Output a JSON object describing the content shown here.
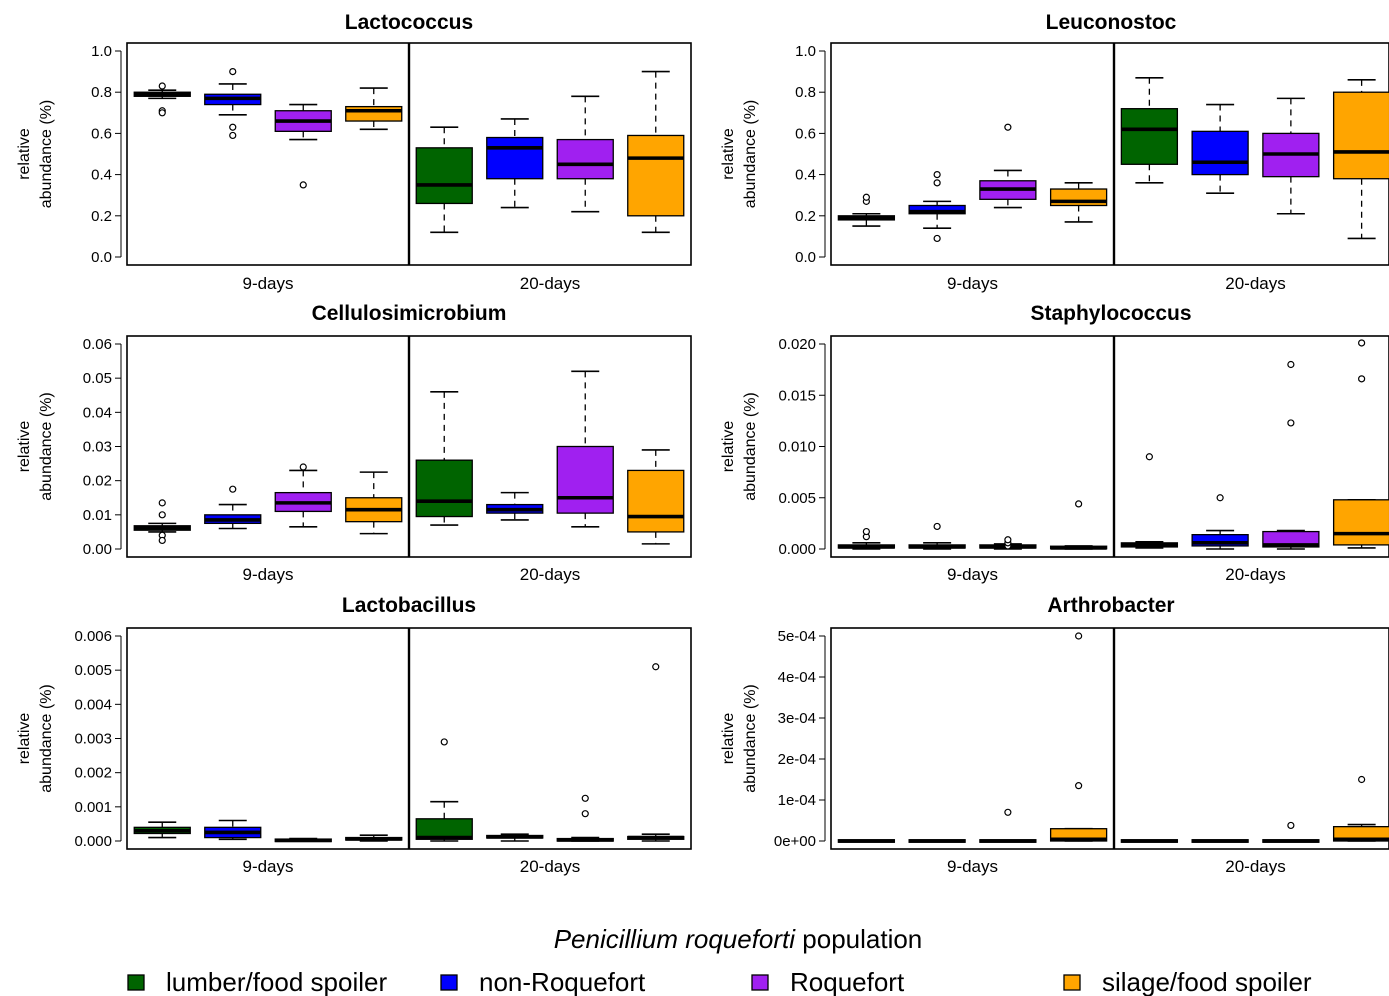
{
  "legend": {
    "title_italic": "Penicillium roqueforti",
    "title_rest": " population",
    "items": [
      {
        "label": "lumber/food spoiler",
        "color": "#006400"
      },
      {
        "label": "non-Roquefort",
        "color": "#0000ff"
      },
      {
        "label": "Roquefort",
        "color": "#a020f0"
      },
      {
        "label": "silage/food spoiler",
        "color": "#ffa500"
      }
    ]
  },
  "chart_data": [
    {
      "type": "box",
      "title": "Lactococcus",
      "ylabel_lines": [
        "relative",
        "abundance (%)"
      ],
      "categories": [
        "9-days",
        "20-days"
      ],
      "yticks": [
        "0.0",
        "0.2",
        "0.4",
        "0.6",
        "0.8",
        "1.0"
      ],
      "ylim": [
        0.0,
        1.0
      ],
      "groups": [
        [
          {
            "lo": 0.77,
            "q1": 0.78,
            "med": 0.79,
            "q3": 0.8,
            "hi": 0.81,
            "out": [
              0.83,
              0.71,
              0.7
            ]
          },
          {
            "lo": 0.69,
            "q1": 0.74,
            "med": 0.77,
            "q3": 0.79,
            "hi": 0.84,
            "out": [
              0.9,
              0.63,
              0.59
            ]
          },
          {
            "lo": 0.57,
            "q1": 0.61,
            "med": 0.66,
            "q3": 0.71,
            "hi": 0.74,
            "out": [
              0.35
            ]
          },
          {
            "lo": 0.62,
            "q1": 0.66,
            "med": 0.71,
            "q3": 0.73,
            "hi": 0.82,
            "out": []
          }
        ],
        [
          {
            "lo": 0.12,
            "q1": 0.26,
            "med": 0.35,
            "q3": 0.53,
            "hi": 0.63,
            "out": []
          },
          {
            "lo": 0.24,
            "q1": 0.38,
            "med": 0.53,
            "q3": 0.58,
            "hi": 0.67,
            "out": []
          },
          {
            "lo": 0.22,
            "q1": 0.38,
            "med": 0.45,
            "q3": 0.57,
            "hi": 0.78,
            "out": []
          },
          {
            "lo": 0.12,
            "q1": 0.2,
            "med": 0.48,
            "q3": 0.59,
            "hi": 0.9,
            "out": []
          }
        ]
      ]
    },
    {
      "type": "box",
      "title": "Leuconostoc",
      "ylabel_lines": [
        "relative",
        "abundance (%)"
      ],
      "categories": [
        "9-days",
        "20-days"
      ],
      "yticks": [
        "0.0",
        "0.2",
        "0.4",
        "0.6",
        "0.8",
        "1.0"
      ],
      "ylim": [
        0.0,
        1.0
      ],
      "groups": [
        [
          {
            "lo": 0.15,
            "q1": 0.18,
            "med": 0.19,
            "q3": 0.2,
            "hi": 0.21,
            "out": [
              0.27,
              0.29
            ]
          },
          {
            "lo": 0.14,
            "q1": 0.21,
            "med": 0.22,
            "q3": 0.25,
            "hi": 0.27,
            "out": [
              0.36,
              0.4,
              0.09
            ]
          },
          {
            "lo": 0.24,
            "q1": 0.28,
            "med": 0.33,
            "q3": 0.37,
            "hi": 0.42,
            "out": [
              0.63
            ]
          },
          {
            "lo": 0.17,
            "q1": 0.25,
            "med": 0.27,
            "q3": 0.33,
            "hi": 0.36,
            "out": []
          }
        ],
        [
          {
            "lo": 0.36,
            "q1": 0.45,
            "med": 0.62,
            "q3": 0.72,
            "hi": 0.87,
            "out": []
          },
          {
            "lo": 0.31,
            "q1": 0.4,
            "med": 0.46,
            "q3": 0.61,
            "hi": 0.74,
            "out": []
          },
          {
            "lo": 0.21,
            "q1": 0.39,
            "med": 0.5,
            "q3": 0.6,
            "hi": 0.77,
            "out": []
          },
          {
            "lo": 0.09,
            "q1": 0.38,
            "med": 0.51,
            "q3": 0.8,
            "hi": 0.86,
            "out": []
          }
        ]
      ]
    },
    {
      "type": "box",
      "title": "Cellulosimicrobium",
      "ylabel_lines": [
        "relative",
        "abundance (%)"
      ],
      "categories": [
        "9-days",
        "20-days"
      ],
      "yticks": [
        "0.00",
        "0.01",
        "0.02",
        "0.03",
        "0.04",
        "0.05",
        "0.06"
      ],
      "ylim": [
        0.0,
        0.06
      ],
      "groups": [
        [
          {
            "lo": 0.005,
            "q1": 0.0055,
            "med": 0.0062,
            "q3": 0.0068,
            "hi": 0.0075,
            "out": [
              0.0135,
              0.01,
              0.004,
              0.0025
            ]
          },
          {
            "lo": 0.006,
            "q1": 0.0075,
            "med": 0.0085,
            "q3": 0.01,
            "hi": 0.013,
            "out": [
              0.0175
            ]
          },
          {
            "lo": 0.0065,
            "q1": 0.011,
            "med": 0.0135,
            "q3": 0.0165,
            "hi": 0.023,
            "out": [
              0.024
            ]
          },
          {
            "lo": 0.0045,
            "q1": 0.008,
            "med": 0.0115,
            "q3": 0.015,
            "hi": 0.0225,
            "out": []
          }
        ],
        [
          {
            "lo": 0.007,
            "q1": 0.0095,
            "med": 0.014,
            "q3": 0.026,
            "hi": 0.046,
            "out": []
          },
          {
            "lo": 0.0085,
            "q1": 0.0105,
            "med": 0.0115,
            "q3": 0.013,
            "hi": 0.0165,
            "out": []
          },
          {
            "lo": 0.0065,
            "q1": 0.0105,
            "med": 0.015,
            "q3": 0.03,
            "hi": 0.052,
            "out": []
          },
          {
            "lo": 0.0015,
            "q1": 0.005,
            "med": 0.0095,
            "q3": 0.023,
            "hi": 0.029,
            "out": []
          }
        ]
      ]
    },
    {
      "type": "box",
      "title": "Staphylococcus",
      "ylabel_lines": [
        "relative",
        "abundance (%)"
      ],
      "categories": [
        "9-days",
        "20-days"
      ],
      "yticks": [
        "0.000",
        "0.005",
        "0.010",
        "0.015",
        "0.020"
      ],
      "ylim": [
        0.0,
        0.02
      ],
      "groups": [
        [
          {
            "lo": 0.0,
            "q1": 0.0001,
            "med": 0.0002,
            "q3": 0.0004,
            "hi": 0.0006,
            "out": [
              0.0012,
              0.0017
            ]
          },
          {
            "lo": 0.0,
            "q1": 0.0001,
            "med": 0.0002,
            "q3": 0.0004,
            "hi": 0.0006,
            "out": [
              0.0022
            ]
          },
          {
            "lo": 0.0,
            "q1": 0.0001,
            "med": 0.0002,
            "q3": 0.0004,
            "hi": 0.0005,
            "out": [
              0.0003,
              0.0006,
              0.0009
            ]
          },
          {
            "lo": 0.0,
            "q1": 0.0001,
            "med": 0.0001,
            "q3": 0.0002,
            "hi": 0.0003,
            "out": [
              0.0044
            ]
          }
        ],
        [
          {
            "lo": 0.0001,
            "q1": 0.0002,
            "med": 0.0004,
            "q3": 0.0006,
            "hi": 0.0007,
            "out": [
              0.009
            ]
          },
          {
            "lo": 0.0,
            "q1": 0.0003,
            "med": 0.0006,
            "q3": 0.0014,
            "hi": 0.0018,
            "out": [
              0.005
            ]
          },
          {
            "lo": 0.0,
            "q1": 0.0002,
            "med": 0.0004,
            "q3": 0.0017,
            "hi": 0.0018,
            "out": [
              0.0123,
              0.018
            ]
          },
          {
            "lo": 0.0001,
            "q1": 0.0004,
            "med": 0.0015,
            "q3": 0.0048,
            "hi": 0.0048,
            "out": [
              0.0166,
              0.0201
            ]
          }
        ]
      ]
    },
    {
      "type": "box",
      "title": "Lactobacillus",
      "ylabel_lines": [
        "relative",
        "abundance (%)"
      ],
      "categories": [
        "9-days",
        "20-days"
      ],
      "yticks": [
        "0.000",
        "0.001",
        "0.002",
        "0.003",
        "0.004",
        "0.005",
        "0.006"
      ],
      "ylim": [
        0.0,
        0.006
      ],
      "groups": [
        [
          {
            "lo": 0.0001,
            "q1": 0.00022,
            "med": 0.0003,
            "q3": 0.0004,
            "hi": 0.00055,
            "out": []
          },
          {
            "lo": 5e-05,
            "q1": 0.0001,
            "med": 0.00025,
            "q3": 0.0004,
            "hi": 0.0006,
            "out": []
          },
          {
            "lo": 0.0,
            "q1": 0.0,
            "med": 2e-05,
            "q3": 4e-05,
            "hi": 7e-05,
            "out": []
          },
          {
            "lo": 0.0,
            "q1": 3e-05,
            "med": 6e-05,
            "q3": 0.0001,
            "hi": 0.00017,
            "out": []
          }
        ],
        [
          {
            "lo": 0.0,
            "q1": 5e-05,
            "med": 0.0001,
            "q3": 0.00065,
            "hi": 0.00115,
            "out": [
              0.0029
            ]
          },
          {
            "lo": 0.0,
            "q1": 0.0001,
            "med": 0.00012,
            "q3": 0.00015,
            "hi": 0.0002,
            "out": []
          },
          {
            "lo": 0.0,
            "q1": 0.0,
            "med": 3e-05,
            "q3": 7e-05,
            "hi": 0.0001,
            "out": [
              0.0008,
              0.00125
            ]
          },
          {
            "lo": 0.0,
            "q1": 5e-05,
            "med": 0.0001,
            "q3": 0.00013,
            "hi": 0.0002,
            "out": [
              0.0051
            ]
          }
        ]
      ]
    },
    {
      "type": "box",
      "title": "Arthrobacter",
      "ylabel_lines": [
        "relative",
        "abundance (%)"
      ],
      "categories": [
        "9-days",
        "20-days"
      ],
      "yticks": [
        "0e+00",
        "1e-04",
        "2e-04",
        "3e-04",
        "4e-04",
        "5e-04"
      ],
      "ylim": [
        0.0,
        0.0005
      ],
      "groups": [
        [
          {
            "lo": 0.0,
            "q1": 0.0,
            "med": 0.0,
            "q3": 0.0,
            "hi": 0.0,
            "out": []
          },
          {
            "lo": 0.0,
            "q1": 0.0,
            "med": 0.0,
            "q3": 0.0,
            "hi": 0.0,
            "out": []
          },
          {
            "lo": 0.0,
            "q1": 0.0,
            "med": 0.0,
            "q3": 0.0,
            "hi": 0.0,
            "out": [
              7e-05
            ]
          },
          {
            "lo": 0.0,
            "q1": 0.0,
            "med": 4e-06,
            "q3": 3e-05,
            "hi": 3e-05,
            "out": [
              0.000135,
              0.0005
            ]
          }
        ],
        [
          {
            "lo": 0.0,
            "q1": 0.0,
            "med": 0.0,
            "q3": 0.0,
            "hi": 0.0,
            "out": []
          },
          {
            "lo": 0.0,
            "q1": 0.0,
            "med": 0.0,
            "q3": 0.0,
            "hi": 0.0,
            "out": []
          },
          {
            "lo": 0.0,
            "q1": 0.0,
            "med": 0.0,
            "q3": 0.0,
            "hi": 0.0,
            "out": [
              3.8e-05
            ]
          },
          {
            "lo": 0.0,
            "q1": 0.0,
            "med": 4e-06,
            "q3": 3.5e-05,
            "hi": 4e-05,
            "out": [
              0.00015
            ]
          }
        ]
      ]
    }
  ]
}
